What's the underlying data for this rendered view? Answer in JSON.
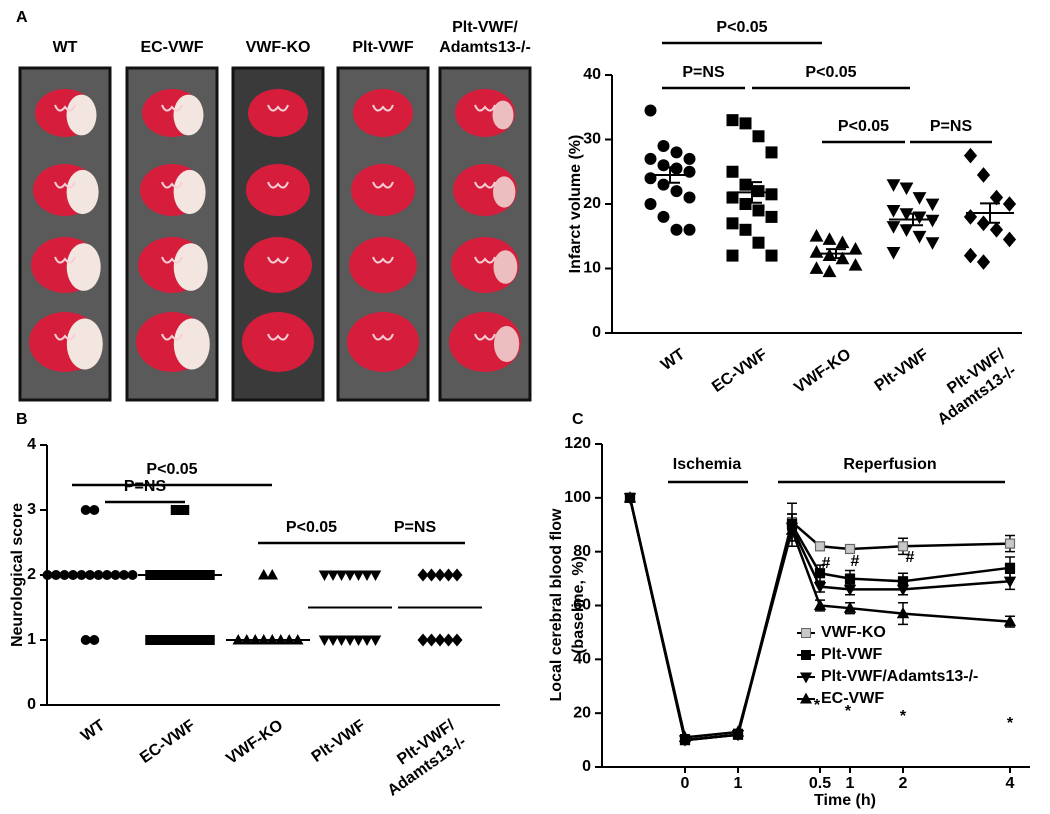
{
  "panel_labels": [
    "A",
    "B",
    "C"
  ],
  "image_panel": {
    "labels": [
      "WT",
      "EC-VWF",
      "VWF-KO",
      "Plt-VWF",
      "Plt-VWF/\nAdamts13-/-"
    ]
  },
  "chart_data": [
    {
      "type": "dotplot",
      "ylabel": "Infarct volume (%)",
      "categories": [
        "WT",
        "EC-VWF",
        "VWF-KO",
        "Plt-VWF",
        "Plt-VWF/\nAdamts13-/-"
      ],
      "markers": [
        "circle",
        "square",
        "triangle",
        "invtriangle",
        "diamond"
      ],
      "values": [
        [
          34.5,
          29,
          28,
          27,
          27,
          26,
          25.5,
          25,
          24,
          23,
          22,
          21,
          20,
          18,
          16,
          16
        ],
        [
          33,
          32.5,
          30.5,
          28,
          25,
          23,
          22,
          21.5,
          21,
          20,
          19,
          18,
          17,
          16,
          14,
          12,
          12
        ],
        [
          15,
          14.5,
          14,
          13,
          12.5,
          12,
          11.5,
          10.5,
          10,
          9.5
        ],
        [
          23,
          22.5,
          21,
          20,
          19,
          18.5,
          18,
          17.5,
          16.5,
          16,
          15,
          14,
          12.5
        ],
        [
          27.5,
          24.5,
          21,
          20,
          18,
          17,
          16,
          14.5,
          12,
          11
        ]
      ],
      "means": [
        24.5,
        21.8,
        12.3,
        17.6,
        18.6
      ],
      "sem": [
        1.2,
        1.6,
        0.7,
        0.9,
        1.5
      ],
      "ylim": [
        0,
        40
      ],
      "yticks": [
        0,
        10,
        20,
        30,
        40
      ],
      "annotations": [
        "P<0.05",
        "P=NS",
        "P<0.05",
        "P<0.05",
        "P=NS"
      ]
    },
    {
      "type": "dotplot",
      "ylabel": "Neurological score",
      "categories": [
        "WT",
        "EC-VWF",
        "VWF-KO",
        "Plt-VWF",
        "Plt-VWF/\nAdamts13-/-"
      ],
      "markers": [
        "circle",
        "square",
        "triangle",
        "invtriangle",
        "diamond"
      ],
      "values": [
        [
          3,
          3,
          2,
          2,
          2,
          2,
          2,
          2,
          2,
          2,
          2,
          2,
          2,
          1,
          1
        ],
        [
          3,
          3,
          2,
          2,
          2,
          2,
          2,
          2,
          2,
          2,
          1,
          1,
          1,
          1,
          1,
          1,
          1,
          1
        ],
        [
          2,
          2,
          1,
          1,
          1,
          1,
          1,
          1,
          1,
          1
        ],
        [
          2,
          2,
          2,
          2,
          2,
          2,
          2,
          1,
          1,
          1,
          1,
          1,
          1,
          1
        ],
        [
          2,
          2,
          2,
          2,
          2,
          1,
          1,
          1,
          1,
          1
        ]
      ],
      "medians": [
        2,
        2,
        1,
        1.5,
        1.5
      ],
      "ylim": [
        0,
        4
      ],
      "yticks": [
        0,
        1,
        2,
        3,
        4
      ],
      "annotations": [
        "P<0.05",
        "P=NS",
        "P<0.05",
        "P=NS"
      ]
    },
    {
      "type": "line",
      "xlabel": "Time (h)",
      "ylabel": [
        "Local cerebral blood  flow",
        "(baseline, %)"
      ],
      "categories": [
        null,
        "0",
        "1",
        null,
        "0.5",
        "1",
        "2",
        "4"
      ],
      "series": [
        {
          "name": "VWF-KO",
          "marker": "square",
          "color": "#c8c8c8",
          "values": [
            100,
            10,
            12,
            91,
            82,
            81,
            82,
            83
          ],
          "errors": [
            0,
            1,
            1,
            3,
            1.5,
            1.5,
            3,
            3
          ]
        },
        {
          "name": "Plt-VWF",
          "marker": "square",
          "color": "#000000",
          "values": [
            100,
            10,
            12,
            90,
            72,
            70,
            69,
            74
          ],
          "errors": [
            0,
            1,
            1,
            8,
            3,
            3,
            3,
            4
          ]
        },
        {
          "name": "Plt-VWF/Adamts13-/-",
          "marker": "invtriangle",
          "color": "#000000",
          "values": [
            100,
            10,
            12,
            89,
            67,
            66,
            66,
            69
          ],
          "errors": [
            0,
            1,
            1,
            5,
            2,
            2,
            2,
            3
          ]
        },
        {
          "name": "EC-VWF",
          "marker": "triangle",
          "color": "#000000",
          "values": [
            100,
            11,
            13,
            88,
            60,
            59,
            57,
            54
          ],
          "errors": [
            0,
            1,
            1,
            4,
            2,
            2,
            4,
            2
          ]
        }
      ],
      "ylim": [
        0,
        120
      ],
      "yticks": [
        0,
        20,
        40,
        60,
        80,
        100,
        120
      ],
      "annotations": [
        "Ischemia",
        "Reperfusion",
        "#",
        "#",
        "#",
        "*",
        "*",
        "*",
        "*"
      ]
    }
  ]
}
